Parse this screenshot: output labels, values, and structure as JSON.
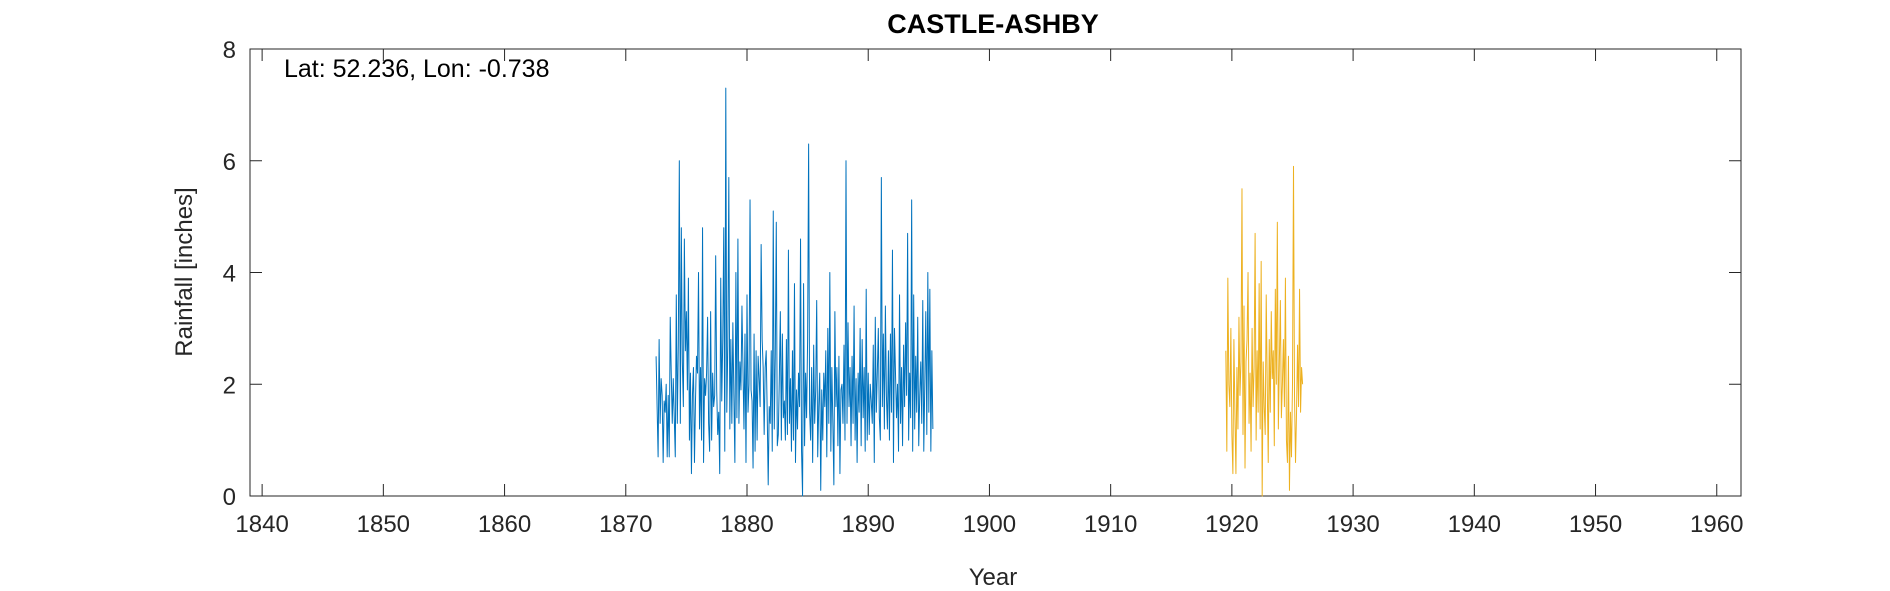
{
  "chart_data": {
    "type": "line",
    "title": "CASTLE-ASHBY",
    "xlabel": "Year",
    "ylabel": "Rainfall [inches]",
    "annotation": "Lat: 52.236, Lon: -0.738",
    "xlim": [
      1839,
      1962
    ],
    "ylim": [
      0,
      8
    ],
    "xticks": [
      1840,
      1850,
      1860,
      1870,
      1880,
      1890,
      1900,
      1910,
      1920,
      1930,
      1940,
      1950,
      1960
    ],
    "yticks": [
      0,
      2,
      4,
      6,
      8
    ],
    "grid": false,
    "box": true,
    "series": [
      {
        "color": "#0072BD",
        "start": 1872.5,
        "step": 0.0833333,
        "values": [
          2.5,
          1.6,
          0.7,
          2.8,
          1.3,
          2.1,
          1.8,
          0.6,
          1.7,
          1.5,
          2.0,
          0.7,
          1.8,
          0.7,
          3.2,
          2.2,
          1.3,
          2.1,
          1.4,
          0.7,
          3.6,
          1.3,
          2.7,
          6.0,
          1.3,
          4.8,
          2.4,
          1.6,
          4.6,
          2.6,
          3.3,
          1.9,
          3.9,
          1.0,
          2.2,
          0.4,
          1.8,
          2.3,
          0.6,
          1.7,
          2.5,
          2.2,
          4.0,
          1.2,
          2.3,
          1.0,
          4.8,
          0.6,
          2.1,
          1.8,
          2.2,
          3.2,
          1.3,
          0.8,
          3.3,
          1.0,
          2.2,
          1.6,
          1.8,
          4.3,
          1.9,
          1.1,
          1.5,
          0.4,
          3.9,
          1.7,
          2.8,
          4.8,
          0.8,
          7.3,
          1.5,
          2.7,
          5.7,
          1.2,
          2.8,
          1.3,
          3.1,
          1.8,
          0.6,
          4.0,
          1.4,
          4.6,
          1.3,
          2.4,
          1.9,
          3.4,
          2.3,
          1.2,
          2.9,
          0.6,
          3.6,
          1.5,
          2.0,
          5.3,
          1.9,
          1.7,
          0.5,
          2.9,
          0.8,
          2.6,
          1.0,
          2.5,
          2.1,
          1.6,
          4.5,
          2.8,
          2.3,
          1.1,
          2.3,
          2.6,
          1.5,
          0.2,
          1.6,
          1.3,
          2.6,
          0.8,
          5.1,
          1.2,
          2.5,
          4.9,
          0.9,
          1.1,
          2.1,
          3.3,
          1.0,
          2.9,
          1.4,
          1.7,
          1.0,
          2.8,
          1.1,
          4.4,
          1.3,
          2.1,
          0.8,
          2.6,
          1.0,
          3.8,
          0.6,
          1.9,
          1.2,
          2.2,
          1.6,
          4.6,
          0.8,
          0.0,
          3.8,
          0.9,
          2.2,
          1.4,
          2.8,
          6.3,
          1.5,
          1.0,
          2.3,
          0.6,
          2.7,
          1.3,
          1.9,
          3.5,
          0.7,
          1.6,
          2.2,
          0.1,
          1.9,
          1.0,
          2.2,
          1.6,
          2.6,
          0.7,
          3.0,
          1.3,
          4.0,
          0.8,
          2.3,
          1.3,
          0.2,
          3.3,
          1.6,
          2.3,
          0.9,
          2.5,
          0.4,
          1.9,
          2.0,
          1.3,
          2.7,
          1.0,
          6.0,
          1.3,
          3.1,
          1.6,
          2.3,
          0.9,
          2.5,
          1.3,
          3.4,
          1.0,
          2.1,
          0.6,
          2.2,
          1.5,
          3.0,
          0.9,
          2.8,
          1.4,
          2.3,
          0.8,
          3.7,
          1.0,
          2.2,
          1.1,
          2.0,
          1.7,
          1.3,
          2.7,
          0.6,
          3.2,
          1.5,
          2.2,
          3.0,
          1.4,
          1.0,
          5.7,
          1.6,
          2.9,
          1.2,
          3.4,
          1.8,
          1.2,
          2.6,
          1.0,
          2.9,
          1.5,
          4.4,
          0.6,
          3.0,
          2.2,
          1.4,
          2.0,
          0.8,
          3.6,
          1.3,
          2.3,
          0.9,
          2.7,
          1.6,
          3.1,
          1.8,
          4.7,
          1.0,
          2.2,
          1.4,
          5.3,
          0.8,
          3.6,
          1.2,
          2.5,
          1.5,
          3.2,
          0.9,
          1.8,
          2.4,
          1.3,
          3.5,
          0.8,
          2.0,
          3.3,
          1.1,
          4.0,
          1.5,
          3.7,
          0.8,
          2.6,
          1.2
        ]
      },
      {
        "color": "#EDB120",
        "start": 1919.5,
        "step": 0.0833333,
        "values": [
          2.6,
          0.8,
          3.9,
          2.0,
          1.6,
          3.0,
          1.1,
          0.4,
          2.8,
          1.5,
          0.4,
          2.3,
          1.2,
          3.2,
          1.8,
          2.4,
          5.5,
          1.1,
          3.4,
          0.5,
          2.4,
          2.8,
          4.0,
          1.3,
          2.2,
          0.8,
          3.0,
          1.6,
          2.3,
          4.7,
          1.0,
          2.6,
          1.5,
          3.8,
          1.2,
          4.2,
          0.0,
          2.4,
          1.6,
          1.1,
          3.6,
          2.0,
          0.6,
          2.8,
          1.5,
          3.3,
          2.1,
          2.6,
          0.9,
          3.7,
          2.0,
          4.9,
          1.2,
          2.4,
          3.5,
          1.4,
          2.0,
          2.8,
          1.6,
          3.9,
          1.0,
          0.6,
          2.5,
          0.1,
          1.5,
          0.7,
          2.0,
          5.9,
          1.8,
          0.6,
          1.5,
          2.7,
          1.6,
          3.7,
          1.5,
          2.3,
          2.0
        ]
      }
    ]
  }
}
